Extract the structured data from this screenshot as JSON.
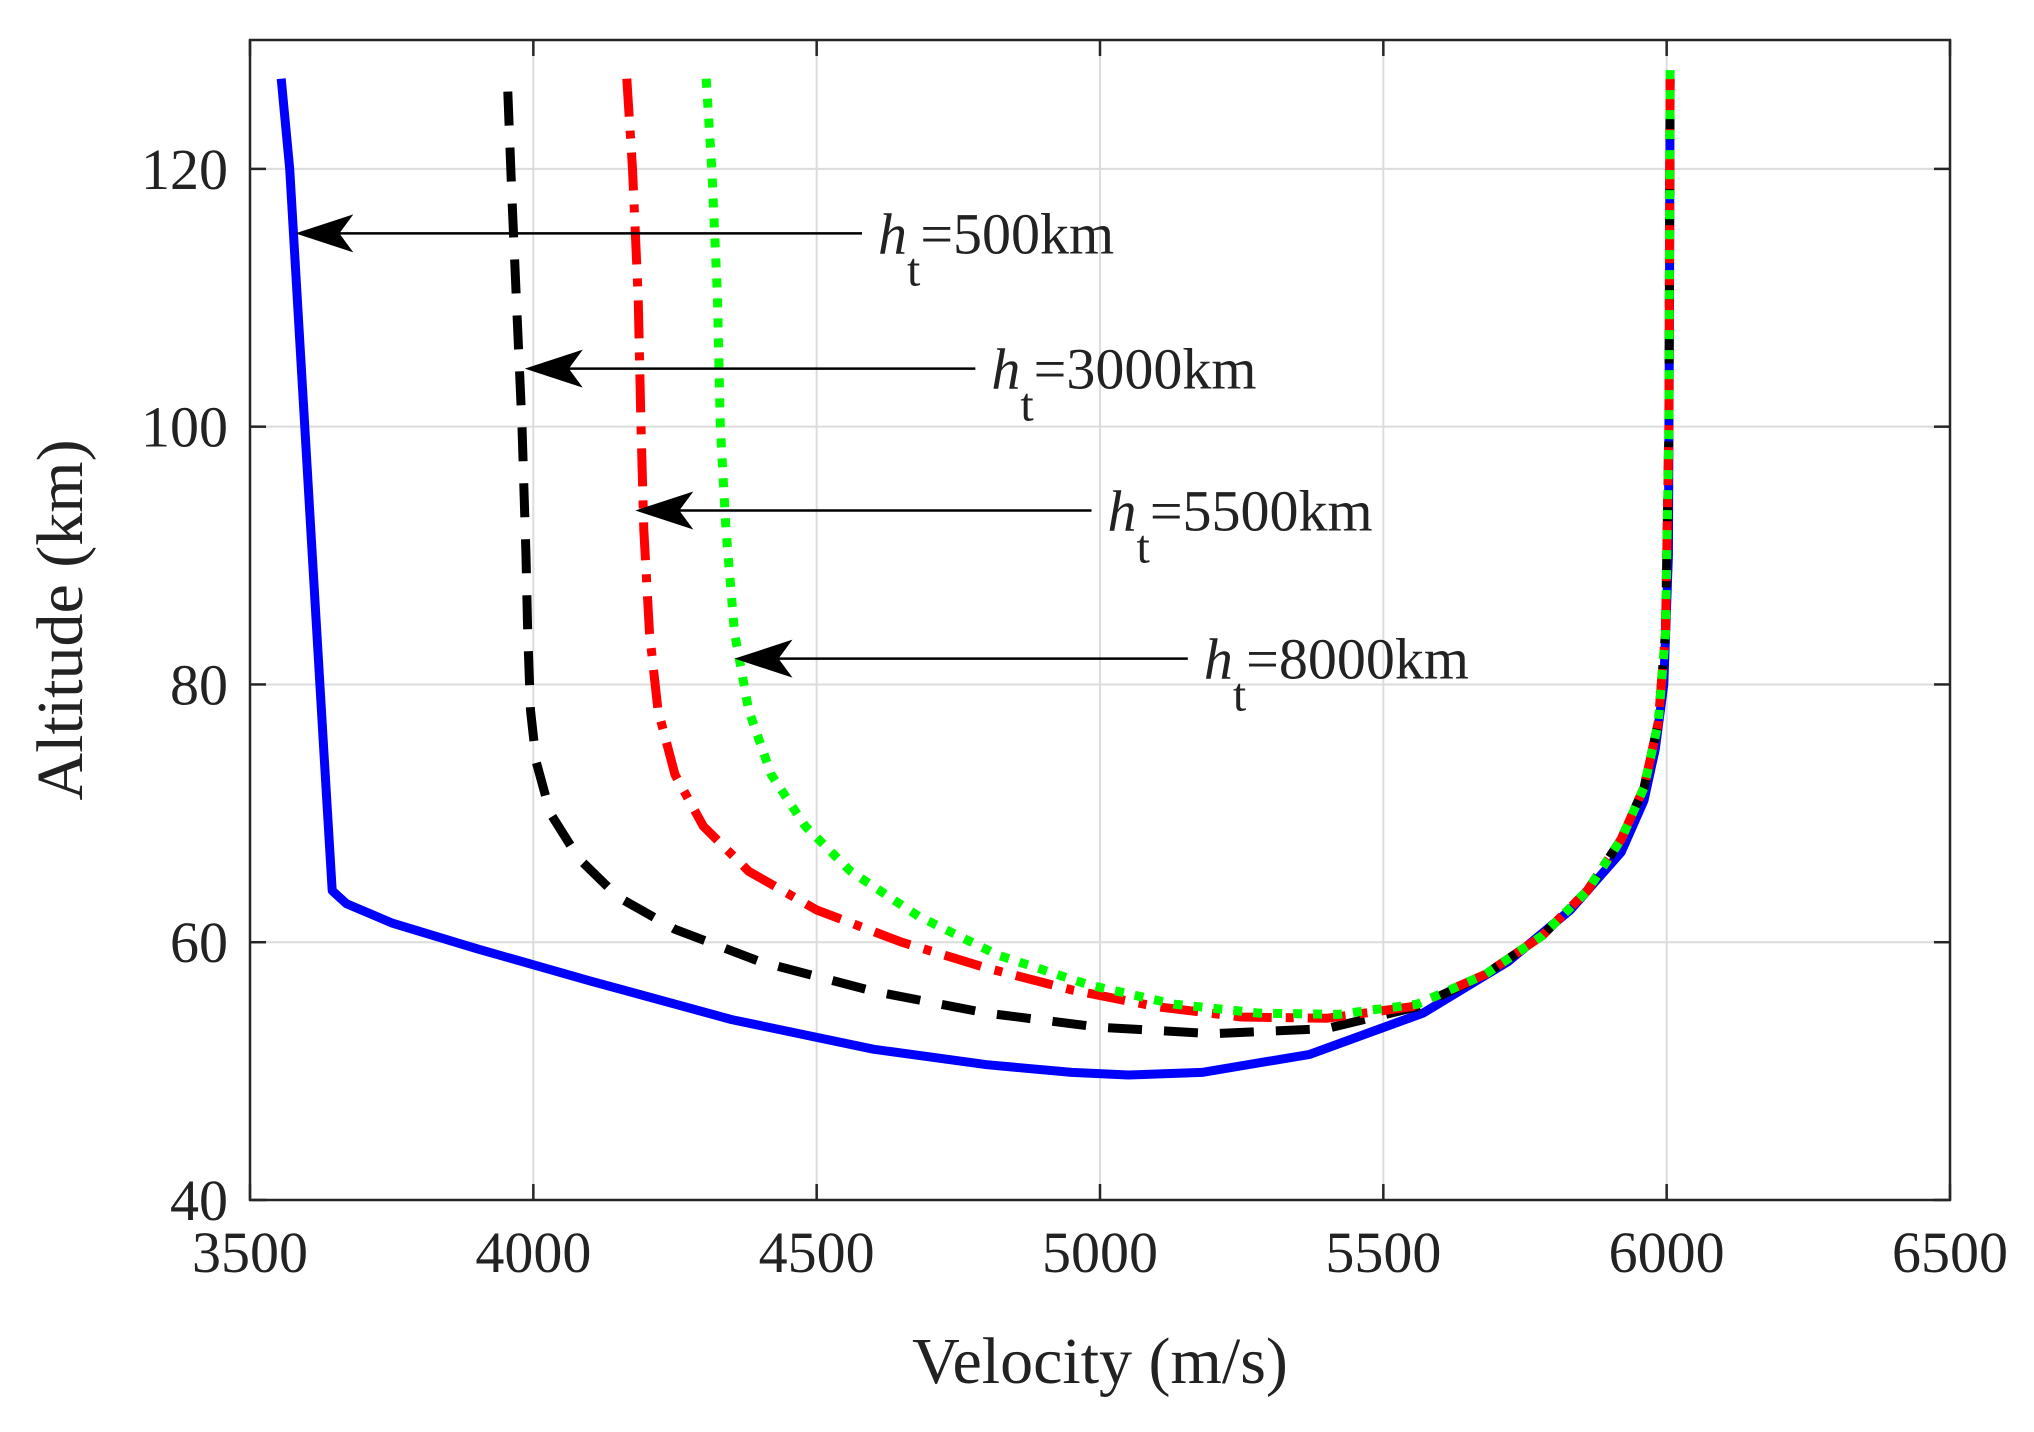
{
  "chart_data": {
    "type": "line",
    "title": "",
    "xlabel": "Velocity (m/s)",
    "ylabel": "Altitude (km)",
    "xlim": [
      3500,
      6500
    ],
    "ylim": [
      40,
      130
    ],
    "xticks": [
      3500,
      4000,
      4500,
      5000,
      5500,
      6000,
      6500
    ],
    "yticks": [
      40,
      60,
      80,
      100,
      120
    ],
    "grid": true,
    "colors": {
      "ht500": "#0000ff",
      "ht3000": "#000000",
      "ht5500": "#ff0000",
      "ht8000": "#00ff00",
      "axis": "#262626",
      "grid": "#dcdcdc"
    },
    "series": [
      {
        "name": "h_t=500km",
        "style": "solid",
        "color": "#0000ff",
        "x": [
          3555,
          3570,
          3590,
          3610,
          3630,
          3645,
          3670,
          3750,
          3900,
          4100,
          4350,
          4600,
          4800,
          4950,
          5050,
          5180,
          5370,
          5570,
          5720,
          5830,
          5920,
          5960,
          5980,
          5995,
          6003,
          6005,
          6006
        ],
        "y": [
          127,
          120,
          105,
          90,
          75,
          64,
          63,
          61.5,
          59.5,
          57,
          54,
          51.7,
          50.5,
          49.9,
          49.7,
          49.9,
          51.3,
          54.5,
          58.5,
          62.5,
          67,
          71,
          75,
          80,
          90,
          110,
          127
        ]
      },
      {
        "name": "h_t=3000km",
        "style": "dashed",
        "color": "#000000",
        "x": [
          3955,
          3962,
          3970,
          3980,
          3987,
          3990,
          3995,
          4005,
          4030,
          4080,
          4150,
          4250,
          4400,
          4600,
          4800,
          5000,
          5200,
          5400,
          5560,
          5680,
          5780,
          5860,
          5920,
          5960,
          5985,
          5998,
          6004,
          6006
        ],
        "y": [
          126,
          118,
          110,
          100,
          90,
          84,
          78,
          74,
          70,
          66.5,
          63.5,
          61,
          58.5,
          56.2,
          54.5,
          53.4,
          52.9,
          53.3,
          55,
          57.5,
          60.5,
          64,
          68,
          72,
          77,
          84,
          100,
          127
        ]
      },
      {
        "name": "h_t=5500km",
        "style": "dashdot",
        "color": "#ff0000",
        "x": [
          4165,
          4175,
          4185,
          4190,
          4195,
          4205,
          4220,
          4250,
          4300,
          4380,
          4500,
          4650,
          4800,
          4950,
          5100,
          5250,
          5400,
          5550,
          5680,
          5780,
          5860,
          5920,
          5960,
          5985,
          5998,
          6004,
          6006
        ],
        "y": [
          127,
          120,
          110,
          100,
          92,
          84,
          78,
          73,
          69,
          65.5,
          62.5,
          60,
          58,
          56.3,
          55,
          54.2,
          54.1,
          55,
          57.5,
          60.5,
          64,
          68,
          72,
          77,
          84,
          100,
          127
        ]
      },
      {
        "name": "h_t=8000km",
        "style": "dotted",
        "color": "#00ff00",
        "x": [
          4305,
          4315,
          4325,
          4330,
          4340,
          4355,
          4380,
          4420,
          4480,
          4560,
          4680,
          4820,
          4980,
          5130,
          5280,
          5420,
          5560,
          5680,
          5780,
          5860,
          5920,
          5960,
          5985,
          5998,
          6004,
          6006
        ],
        "y": [
          127,
          120,
          110,
          100,
          92,
          84,
          78,
          73,
          69,
          65.5,
          62,
          59,
          56.7,
          55.2,
          54.5,
          54.4,
          55.2,
          57.5,
          60.5,
          64,
          68,
          72,
          77,
          84,
          100,
          128
        ]
      }
    ],
    "annotations": [
      {
        "label_main": "h",
        "label_sub": "t",
        "label_rest": "=500km",
        "target": [
          3580,
          115
        ],
        "text_anchor": [
          4580,
          115
        ]
      },
      {
        "label_main": "h",
        "label_sub": "t",
        "label_rest": "=3000km",
        "target": [
          3985,
          104.5
        ],
        "text_anchor": [
          4780,
          104.5
        ]
      },
      {
        "label_main": "h",
        "label_sub": "t",
        "label_rest": "=5500km",
        "target": [
          4180,
          93.5
        ],
        "text_anchor": [
          4985,
          93.5
        ]
      },
      {
        "label_main": "h",
        "label_sub": "t",
        "label_rest": "=8000km",
        "target": [
          4355,
          82
        ],
        "text_anchor": [
          5155,
          82
        ]
      }
    ]
  }
}
